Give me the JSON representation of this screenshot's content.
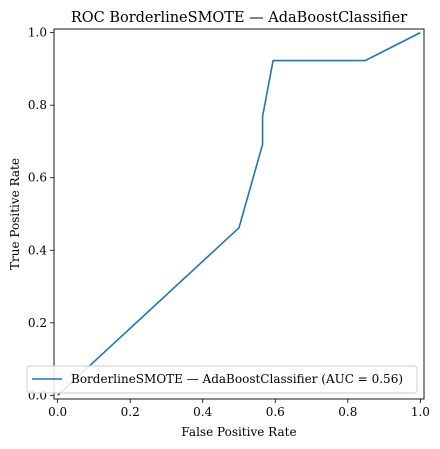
{
  "chart_data": {
    "type": "line",
    "title": "ROC BorderlineSMOTE — AdaBoostClassifier",
    "xlabel": "False Positive Rate",
    "ylabel": "True Positive Rate",
    "xlim": [
      -0.01,
      1.01
    ],
    "ylim": [
      -0.01,
      1.01
    ],
    "xticks": [
      0.0,
      0.2,
      0.4,
      0.6,
      0.8,
      1.0
    ],
    "xtick_labels": [
      "0.0",
      "0.2",
      "0.4",
      "0.6",
      "0.8",
      "1.0"
    ],
    "yticks": [
      0.0,
      0.2,
      0.4,
      0.6,
      0.8,
      1.0
    ],
    "ytick_labels": [
      "0.0",
      "0.2",
      "0.4",
      "0.6",
      "0.8",
      "1.0"
    ],
    "grid": false,
    "legend_position": "lower-right",
    "series": [
      {
        "name": "BorderlineSMOTE — AdaBoostClassifier (AUC = 0.56)",
        "color": "#1f77b4",
        "x": [
          0.0,
          0.5,
          0.565,
          0.565,
          0.594,
          0.848,
          1.0
        ],
        "y": [
          0.0,
          0.462,
          0.692,
          0.769,
          0.923,
          0.923,
          1.0
        ]
      }
    ]
  }
}
